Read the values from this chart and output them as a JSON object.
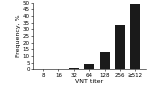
{
  "categories": [
    "8",
    "16",
    "32",
    "64",
    "128",
    "256",
    "≥512"
  ],
  "values": [
    0.5,
    0.5,
    1.0,
    4.0,
    13.0,
    33.0,
    49.0
  ],
  "bar_color": "#1a1a1a",
  "xlabel": "VNT titer",
  "ylabel": "Frequency, %",
  "ylim": [
    0,
    50
  ],
  "yticks": [
    0,
    5,
    10,
    15,
    20,
    25,
    30,
    35,
    40,
    45,
    50
  ],
  "title": "",
  "background_color": "#ffffff",
  "xlabel_fontsize": 4.5,
  "ylabel_fontsize": 4.5,
  "tick_fontsize": 4.0
}
